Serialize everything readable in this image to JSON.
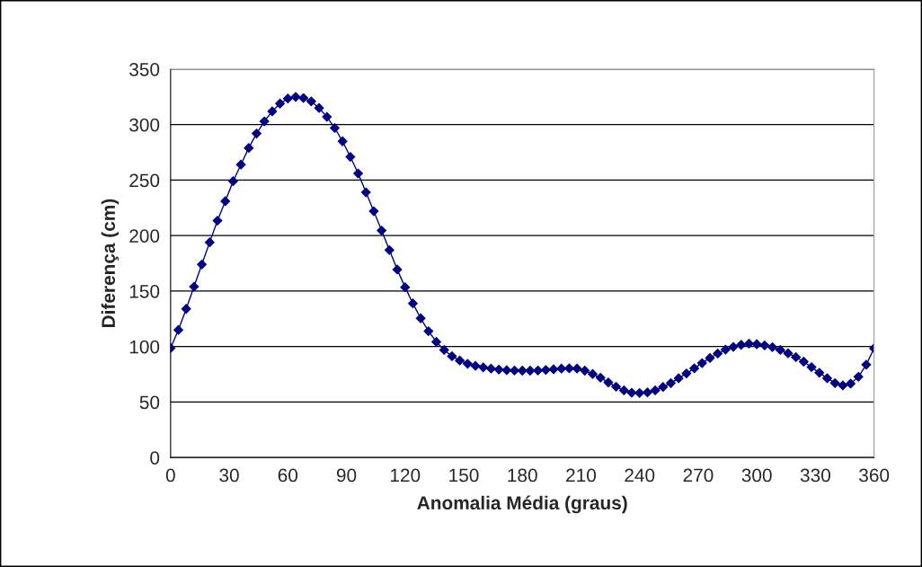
{
  "chart_data": {
    "type": "line",
    "xlabel": "Anomalia Média (graus)",
    "ylabel": "Diferença (cm)",
    "x": [
      0,
      4,
      8,
      12,
      16,
      20,
      24,
      28,
      32,
      36,
      40,
      44,
      48,
      52,
      56,
      60,
      64,
      68,
      72,
      76,
      80,
      84,
      88,
      92,
      96,
      100,
      104,
      108,
      112,
      116,
      120,
      124,
      128,
      132,
      136,
      140,
      144,
      148,
      152,
      156,
      160,
      164,
      168,
      172,
      176,
      180,
      184,
      188,
      192,
      196,
      200,
      204,
      208,
      212,
      216,
      220,
      224,
      228,
      232,
      236,
      240,
      244,
      248,
      252,
      256,
      260,
      264,
      268,
      272,
      276,
      280,
      284,
      288,
      292,
      296,
      300,
      304,
      308,
      312,
      316,
      320,
      324,
      328,
      332,
      336,
      340,
      344,
      348,
      352,
      356,
      360
    ],
    "series": [
      {
        "color": "#000080",
        "values": [
          98.6,
          115,
          134,
          154,
          174,
          194,
          213.5,
          231,
          249,
          264,
          279,
          292,
          303,
          312,
          319,
          323.5,
          325,
          324,
          321,
          315,
          307,
          297,
          285,
          271,
          256,
          239,
          222,
          204.6,
          187,
          169.5,
          153.5,
          138.9,
          125.5,
          113.9,
          104.3,
          97,
          91.3,
          87.5,
          84.5,
          82.6,
          81.3,
          80.2,
          79.3,
          78.8,
          78.5,
          78.3,
          78.3,
          78.5,
          79,
          79.6,
          80.2,
          80.4,
          80.2,
          78.3,
          75.3,
          72,
          67.7,
          63.9,
          60.6,
          58.4,
          58.2,
          58.7,
          60.6,
          63.6,
          67.1,
          71.5,
          75.8,
          80.4,
          85.1,
          89.7,
          93.8,
          97.3,
          99.7,
          101.6,
          102.7,
          102.2,
          101.1,
          99.5,
          97,
          94,
          90.5,
          86.4,
          81.5,
          76.4,
          71.5,
          67.1,
          65,
          66.6,
          72.8,
          83.7,
          98.4
        ]
      }
    ],
    "xlim": [
      0,
      360
    ],
    "xticks": [
      0,
      30,
      60,
      90,
      120,
      150,
      180,
      210,
      240,
      270,
      300,
      330,
      360
    ],
    "ylim": [
      0,
      350
    ],
    "yticks": [
      0,
      50,
      100,
      150,
      200,
      250,
      300,
      350
    ],
    "grid": "y",
    "marker": "diamond",
    "line_style": "solid",
    "legend": false
  }
}
